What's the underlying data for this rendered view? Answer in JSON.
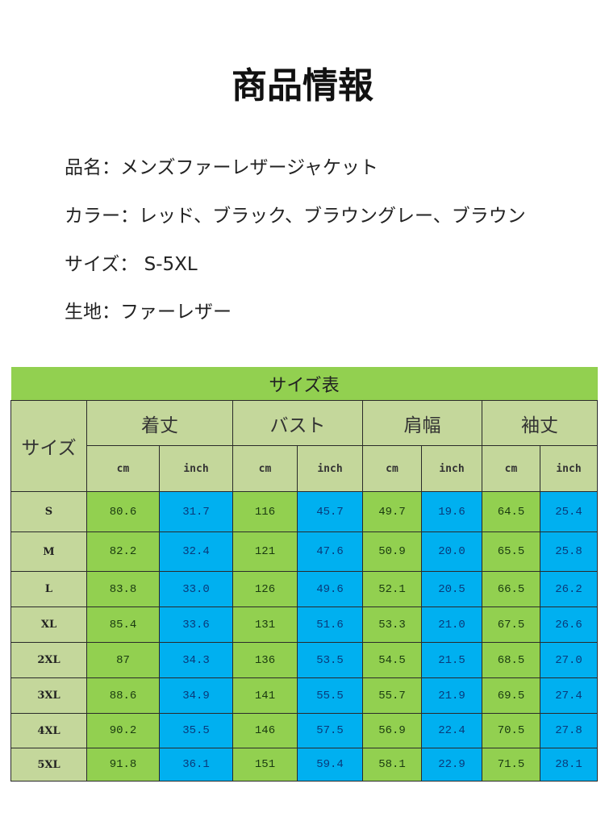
{
  "title": "商品情報",
  "info": [
    "品名：メンズファーレザージャケット",
    "カラー：レッド、ブラック、ブラウングレー、ブラウン",
    "サイズ： S-5XL",
    "生地：ファーレザー"
  ],
  "table": {
    "caption": "サイズ表",
    "size_header": "サイズ",
    "groups": [
      "着丈",
      "バスト",
      "肩幅",
      "袖丈"
    ],
    "units": [
      "cm",
      "inch",
      "cm",
      "inch",
      "cm",
      "inch",
      "cm",
      "inch"
    ],
    "rows": [
      {
        "size": "S",
        "values": [
          "80.6",
          "31.7",
          "116",
          "45.7",
          "49.7",
          "19.6",
          "64.5",
          "25.4"
        ]
      },
      {
        "size": "M",
        "values": [
          "82.2",
          "32.4",
          "121",
          "47.6",
          "50.9",
          "20.0",
          "65.5",
          "25.8"
        ]
      },
      {
        "size": "L",
        "values": [
          "83.8",
          "33.0",
          "126",
          "49.6",
          "52.1",
          "20.5",
          "66.5",
          "26.2"
        ]
      },
      {
        "size": "XL",
        "values": [
          "85.4",
          "33.6",
          "131",
          "51.6",
          "53.3",
          "21.0",
          "67.5",
          "26.6"
        ]
      },
      {
        "size": "2XL",
        "values": [
          "87",
          "34.3",
          "136",
          "53.5",
          "54.5",
          "21.5",
          "68.5",
          "27.0"
        ]
      },
      {
        "size": "3XL",
        "values": [
          "88.6",
          "34.9",
          "141",
          "55.5",
          "55.7",
          "21.9",
          "69.5",
          "27.4"
        ]
      },
      {
        "size": "4XL",
        "values": [
          "90.2",
          "35.5",
          "146",
          "57.5",
          "56.9",
          "22.4",
          "70.5",
          "27.8"
        ]
      },
      {
        "size": "5XL",
        "values": [
          "91.8",
          "36.1",
          "151",
          "59.4",
          "58.1",
          "22.9",
          "71.5",
          "28.1"
        ]
      }
    ],
    "colors": {
      "caption": "#92d050",
      "header": "#c4d79b",
      "cm": "#92d050",
      "inch": "#00b0f0"
    }
  }
}
